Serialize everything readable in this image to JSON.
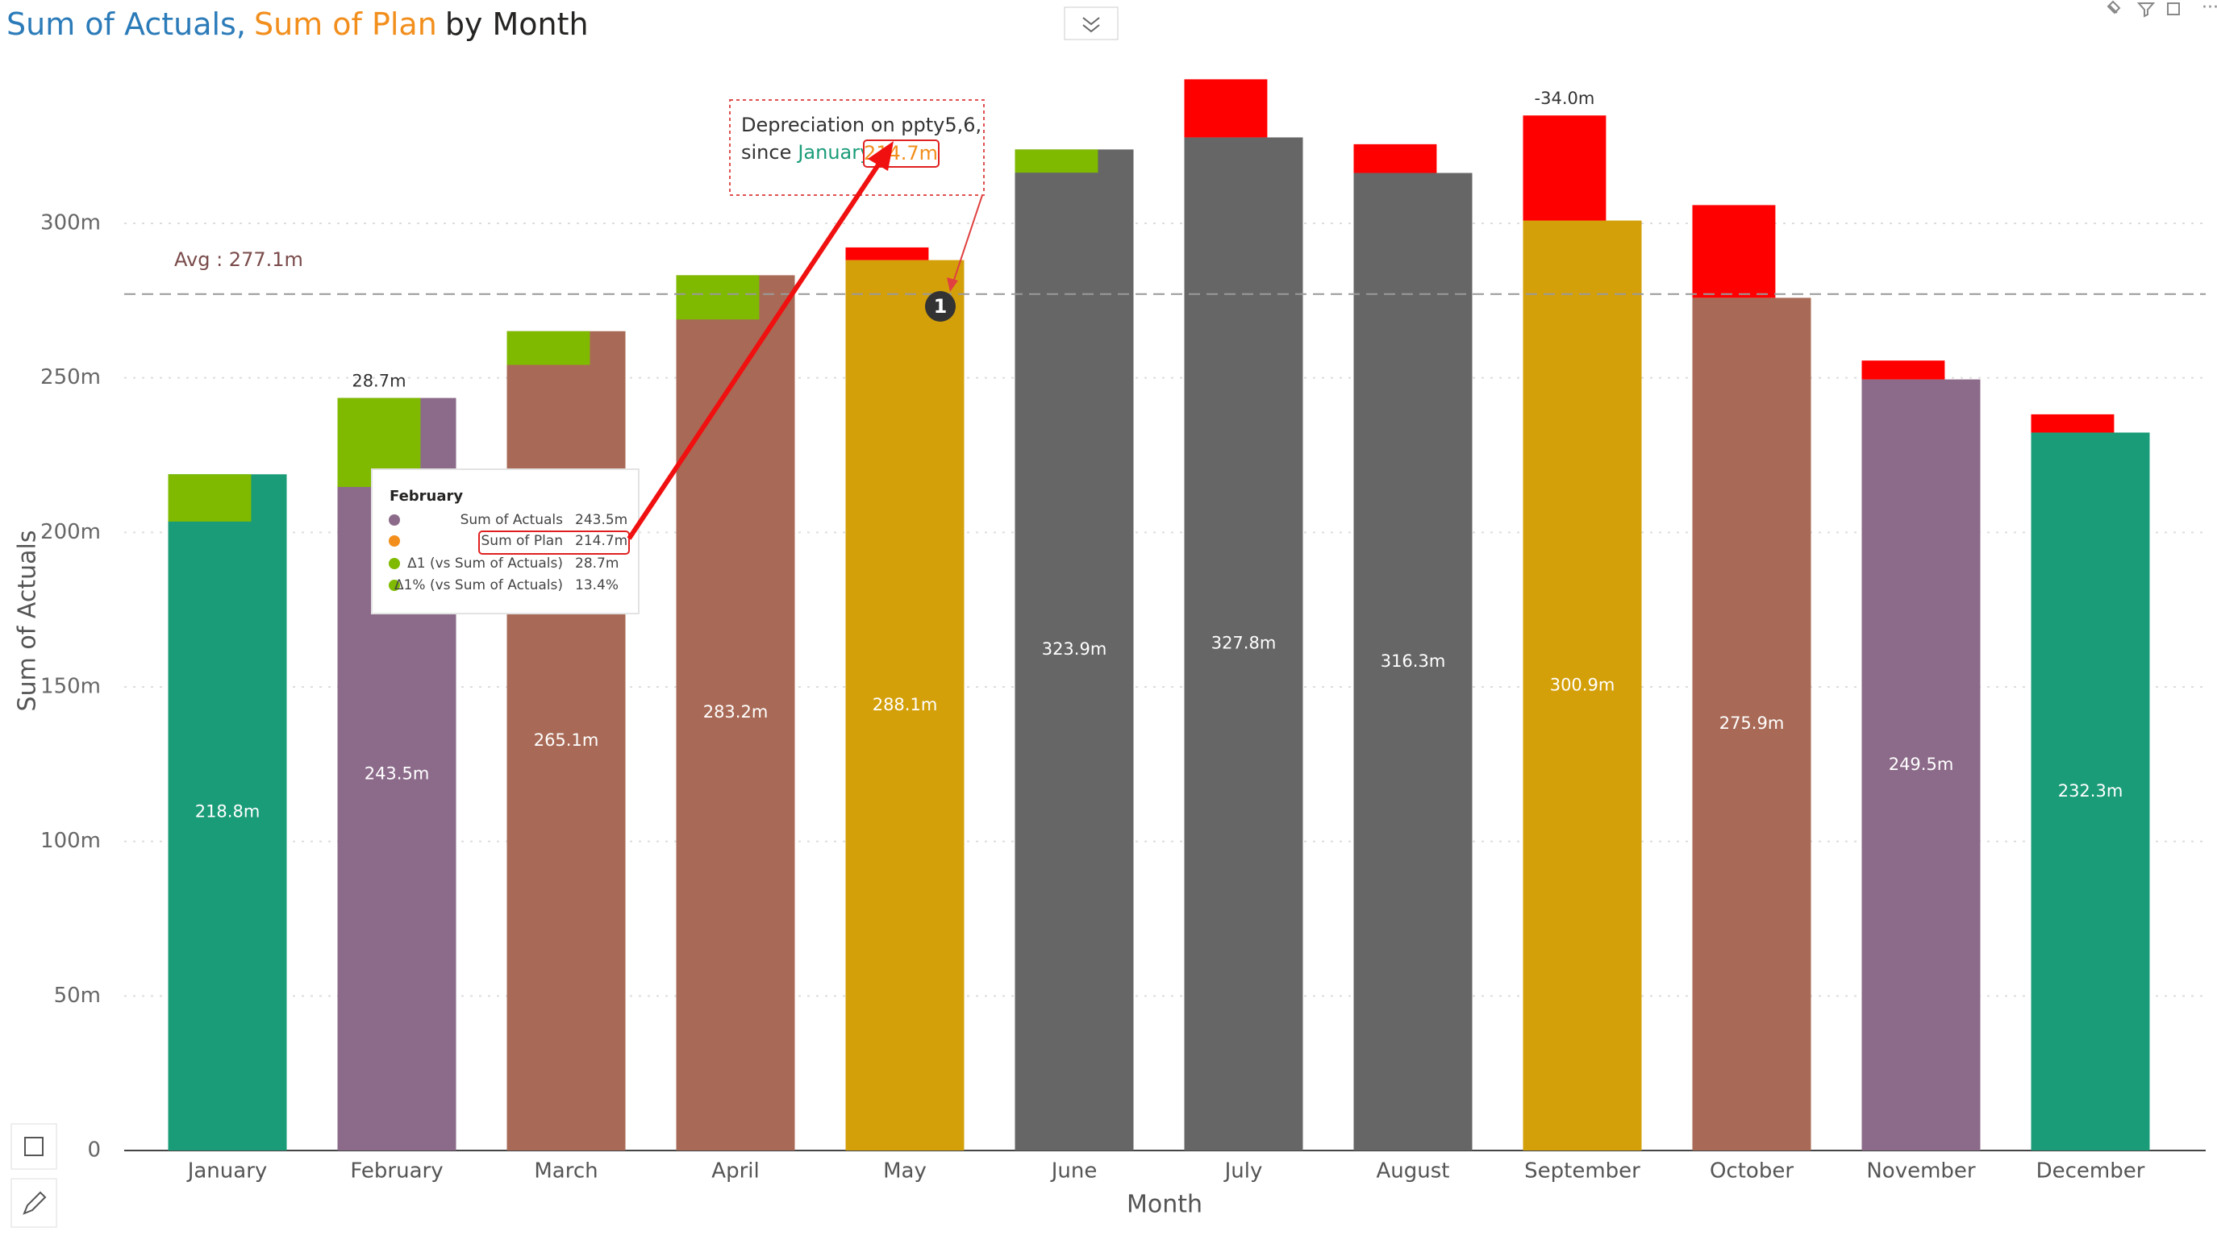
{
  "chart_data": {
    "type": "bar",
    "title": {
      "parts": [
        {
          "text": "Sum of Actuals",
          "color": "#2b7bb9"
        },
        {
          "text": ",",
          "color": "#2b7bb9"
        },
        {
          "text": "Sum of Plan",
          "color": "#f28e1c"
        },
        {
          "text": "by Month",
          "color": "#252423"
        }
      ]
    },
    "x_label": "Month",
    "y_label": "Sum of Actuals",
    "categories": [
      "January",
      "February",
      "March",
      "April",
      "May",
      "June",
      "July",
      "August",
      "September",
      "October",
      "November",
      "December"
    ],
    "series": [
      {
        "name": "Sum of Actuals",
        "colors": [
          "#1a9c78",
          "#8c6b8a",
          "#a86a56",
          "#a86a56",
          "#d4a00a",
          "#666666",
          "#666666",
          "#666666",
          "#d4a00a",
          "#a86a56",
          "#8c6b8a",
          "#1a9c78"
        ],
        "values": [
          218.8,
          243.5,
          265.1,
          283.2,
          288.1,
          323.9,
          327.8,
          316.3,
          300.9,
          275.9,
          249.5,
          232.3
        ],
        "value_labels": [
          "218.8m",
          "243.5m",
          "265.1m",
          "283.2m",
          "288.1m",
          "323.9m",
          "327.8m",
          "316.3m",
          "300.9m",
          "275.9m",
          "249.5m",
          "232.3m"
        ]
      },
      {
        "name": "Sum of Plan",
        "above_color": "#7fba00",
        "below_color": "#ff0000",
        "values": [
          203.5,
          214.7,
          254.2,
          268.9,
          292.2,
          316.4,
          346.6,
          325.6,
          334.9,
          305.9,
          255.6,
          238.2
        ]
      }
    ],
    "delta_labels": [
      null,
      "28.7m",
      null,
      null,
      null,
      null,
      null,
      null,
      "-34.0m",
      null,
      null,
      null
    ],
    "average": {
      "value": 277.1,
      "label": "Avg : 277.1m"
    },
    "ylim": [
      0,
      360
    ],
    "yticks": [
      0,
      {
        "value": 50,
        "label": "50m"
      },
      {
        "value": 100,
        "label": "100m"
      },
      {
        "value": 150,
        "label": "150m"
      },
      {
        "value": 200,
        "label": "200m"
      },
      {
        "value": 250,
        "label": "250m"
      },
      {
        "value": 300,
        "label": "300m"
      }
    ],
    "grid": true
  },
  "tooltip": {
    "title": "February",
    "rows": [
      {
        "label": "Sum of Actuals",
        "value": "243.5m",
        "color": "#8c6b8a"
      },
      {
        "label": "Sum of Plan",
        "value": "214.7m",
        "color": "#f28e1c"
      },
      {
        "label": "Δ1 (vs Sum of Actuals)",
        "value": "28.7m",
        "color": "#7fba00"
      },
      {
        "label": "Δ1% (vs Sum of Actuals)",
        "value": "13.4%",
        "color": "#7fba00"
      }
    ]
  },
  "annotation": {
    "line1": "Depreciation on ppty5,6,",
    "line2": "since",
    "month": "January",
    "value": "214.7m",
    "marker": "1"
  }
}
